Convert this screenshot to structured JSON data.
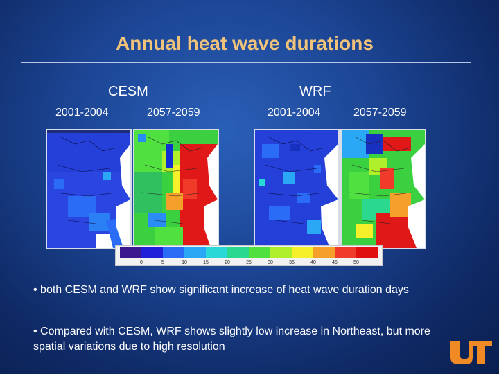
{
  "slide": {
    "title": "Annual heat wave durations",
    "groups": [
      {
        "label": "CESM",
        "periods": [
          "2001-2004",
          "2057-2059"
        ]
      },
      {
        "label": "WRF",
        "periods": [
          "2001-2004",
          "2057-2059"
        ]
      }
    ],
    "colorbar": {
      "ticks": [
        "0",
        "5",
        "10",
        "15",
        "20",
        "25",
        "30",
        "35",
        "40",
        "45",
        "50"
      ],
      "colors": [
        "#3a1a8c",
        "#2020d8",
        "#2a6cf5",
        "#2aa8f5",
        "#2ad8d8",
        "#2ad890",
        "#50e040",
        "#b0f02a",
        "#f5f02a",
        "#f5a02a",
        "#f03a2a",
        "#e01010"
      ]
    },
    "bullets": [
      "• both CESM and WRF show significant increase of heat wave duration days",
      "• Compared with CESM, WRF shows slightly low increase in Northeast, but more spatial variations due to high resolution"
    ],
    "logo_text": "UT",
    "logo_color": "#f08a24"
  }
}
